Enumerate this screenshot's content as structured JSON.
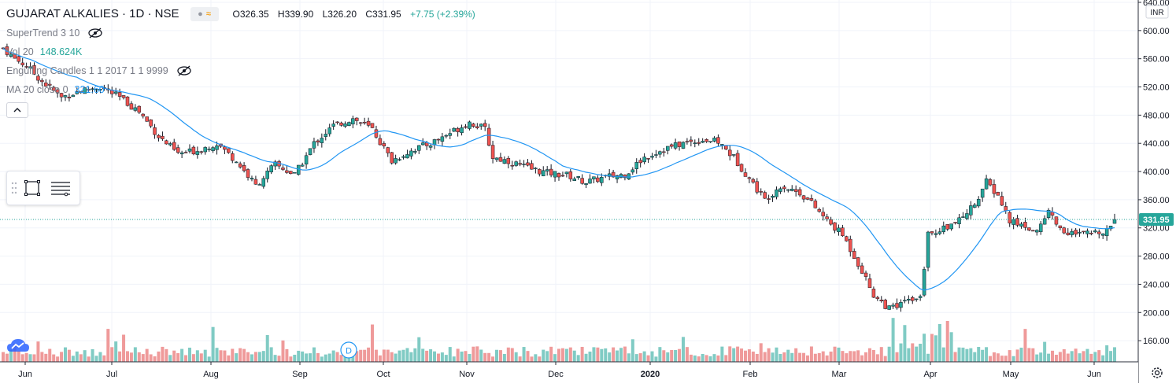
{
  "header": {
    "title": "GUJARAT ALKALIES · 1D · NSE",
    "ohlc": {
      "o": "O326.35",
      "h": "H339.90",
      "l": "L326.20",
      "c": "C331.95",
      "chg": "+7.75 (+2.39%)"
    }
  },
  "studies": [
    {
      "label": "SuperTrend 3 10",
      "value": "",
      "hidden": true
    },
    {
      "label": "Vol 20",
      "value": "148.624K",
      "hidden": false
    },
    {
      "label": "Engulfing Candles 1 1 2017 1 1 9999",
      "value": "",
      "hidden": true
    },
    {
      "label": "MA 20 close 0",
      "value": "321.60",
      "hidden": false
    }
  ],
  "icons": {
    "compare": "compare-icon",
    "collapse": "chevron-up-icon",
    "hide": "eye-crossed-icon",
    "settings": "gear-icon",
    "logo": "tradingview-cloud-icon",
    "marker": "dividend-marker-icon"
  },
  "marker_label": "D",
  "currency_label": "INR",
  "colors": {
    "up": "#26a69a",
    "down": "#ef5350",
    "ma": "#2196f3",
    "price_line": "#26a69a",
    "vol_up": "#80cbc4",
    "vol_down": "#ef9a9a",
    "grid": "#f0f3fa"
  },
  "chart_data": {
    "type": "candlestick",
    "x_labels": [
      "Jun",
      "Jul",
      "Aug",
      "Sep",
      "Oct",
      "Nov",
      "Dec",
      "2020",
      "Feb",
      "Mar",
      "Apr",
      "May",
      "Jun"
    ],
    "y_ticks": [
      160,
      200,
      240,
      280,
      320,
      360,
      400,
      440,
      480,
      520,
      560,
      600,
      640
    ],
    "y_tick_labels": [
      "160.00",
      "200.00",
      "240.00",
      "280.00",
      "320.00",
      "360.00",
      "400.00",
      "440.00",
      "480.00",
      "520.00",
      "560.00",
      "600.00",
      "640.00"
    ],
    "ylim": [
      130,
      640
    ],
    "last_price": 331.95,
    "last_price_label": "331.95",
    "close_anchors": [
      [
        0,
        575
      ],
      [
        3,
        560
      ],
      [
        6,
        550
      ],
      [
        10,
        528
      ],
      [
        15,
        505
      ],
      [
        20,
        515
      ],
      [
        25,
        520
      ],
      [
        30,
        505
      ],
      [
        35,
        485
      ],
      [
        40,
        450
      ],
      [
        45,
        425
      ],
      [
        50,
        430
      ],
      [
        55,
        440
      ],
      [
        60,
        415
      ],
      [
        65,
        380
      ],
      [
        70,
        410
      ],
      [
        75,
        395
      ],
      [
        80,
        440
      ],
      [
        85,
        465
      ],
      [
        90,
        475
      ],
      [
        95,
        460
      ],
      [
        100,
        415
      ],
      [
        105,
        430
      ],
      [
        110,
        440
      ],
      [
        115,
        455
      ],
      [
        120,
        470
      ],
      [
        124,
        460
      ],
      [
        126,
        420
      ],
      [
        130,
        415
      ],
      [
        135,
        405
      ],
      [
        140,
        398
      ],
      [
        145,
        395
      ],
      [
        150,
        385
      ],
      [
        155,
        392
      ],
      [
        160,
        396
      ],
      [
        165,
        420
      ],
      [
        170,
        432
      ],
      [
        175,
        440
      ],
      [
        180,
        445
      ],
      [
        184,
        442
      ],
      [
        188,
        420
      ],
      [
        192,
        390
      ],
      [
        196,
        360
      ],
      [
        200,
        380
      ],
      [
        205,
        370
      ],
      [
        208,
        355
      ],
      [
        212,
        330
      ],
      [
        216,
        310
      ],
      [
        220,
        270
      ],
      [
        224,
        225
      ],
      [
        228,
        205
      ],
      [
        232,
        215
      ],
      [
        236,
        225
      ],
      [
        237,
        265
      ],
      [
        238,
        310
      ],
      [
        242,
        320
      ],
      [
        246,
        330
      ],
      [
        250,
        355
      ],
      [
        253,
        385
      ],
      [
        256,
        365
      ],
      [
        259,
        330
      ],
      [
        263,
        322
      ],
      [
        266,
        315
      ],
      [
        269,
        345
      ],
      [
        272,
        318
      ],
      [
        276,
        310
      ],
      [
        280,
        312
      ],
      [
        284,
        318
      ],
      [
        286,
        331.95
      ]
    ],
    "ma_label": "MA 20 close 0",
    "volume_label": "Vol 20"
  }
}
